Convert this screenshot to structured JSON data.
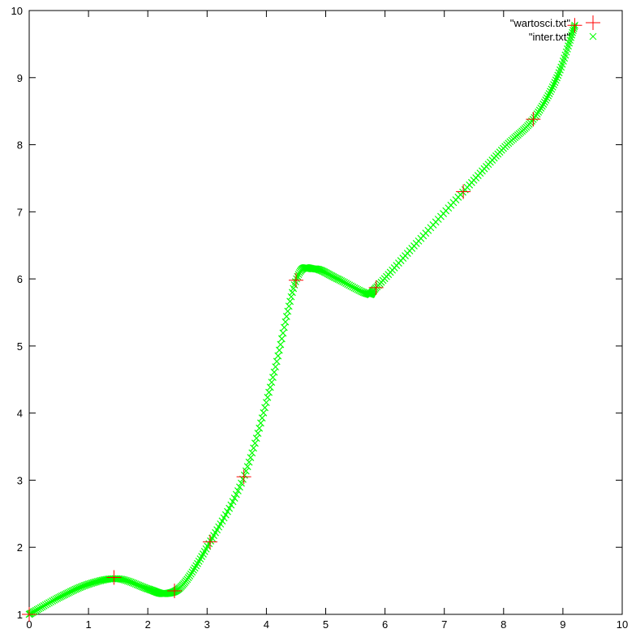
{
  "chart_data": {
    "type": "scatter",
    "title": "",
    "xlabel": "",
    "ylabel": "",
    "xlim": [
      0,
      10
    ],
    "ylim": [
      1,
      10
    ],
    "grid": false,
    "legend_position": "top-right",
    "x_ticks": [
      "0",
      "1",
      "2",
      "3",
      "4",
      "5",
      "6",
      "7",
      "8",
      "9",
      "10"
    ],
    "y_ticks": [
      "1",
      "2",
      "3",
      "4",
      "5",
      "6",
      "7",
      "8",
      "9",
      "10"
    ],
    "series": [
      {
        "name": "\"wartosci.txt\"",
        "marker": "plus",
        "color": "#ff0000",
        "points": [
          [
            0,
            1
          ],
          [
            1.43,
            1.55
          ],
          [
            2.45,
            1.35
          ],
          [
            3.05,
            2.08
          ],
          [
            3.62,
            3.05
          ],
          [
            4.5,
            5.98
          ],
          [
            5.85,
            5.87
          ],
          [
            7.32,
            7.3
          ],
          [
            8.5,
            8.38
          ],
          [
            9.2,
            9.78
          ]
        ]
      },
      {
        "name": "\"inter.txt\"",
        "marker": "cross",
        "color": "#00ff00",
        "curve_through": [
          [
            0,
            1
          ],
          [
            0.5,
            1.25
          ],
          [
            1.0,
            1.45
          ],
          [
            1.5,
            1.53
          ],
          [
            2.0,
            1.38
          ],
          [
            2.3,
            1.31
          ],
          [
            2.6,
            1.45
          ],
          [
            3.05,
            2.08
          ],
          [
            3.62,
            3.05
          ],
          [
            4.1,
            4.5
          ],
          [
            4.5,
            5.98
          ],
          [
            4.8,
            6.15
          ],
          [
            5.2,
            6.0
          ],
          [
            5.7,
            5.78
          ],
          [
            5.85,
            5.87
          ],
          [
            6.5,
            6.5
          ],
          [
            7.32,
            7.3
          ],
          [
            8.0,
            7.95
          ],
          [
            8.5,
            8.38
          ],
          [
            8.9,
            9.0
          ],
          [
            9.2,
            9.78
          ]
        ],
        "samples": 400
      }
    ]
  }
}
